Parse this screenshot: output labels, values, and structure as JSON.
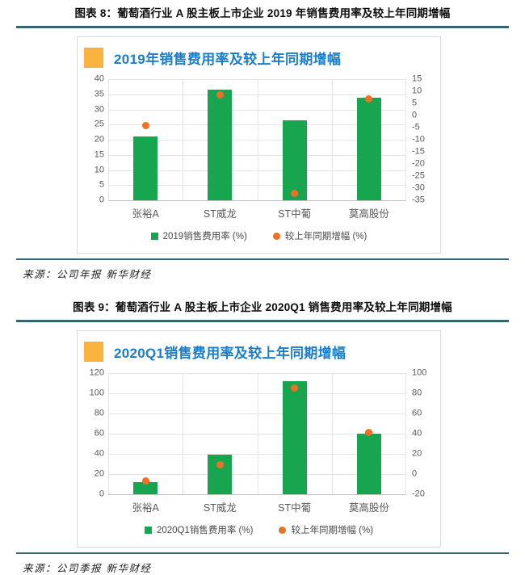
{
  "figures": [
    {
      "caption": "图表 8：葡萄酒行业 A 股主板上市企业 2019 年销售费用率及较上年同期增幅",
      "source": "来源：公司年报  新华财经"
    },
    {
      "caption": "图表 9：葡萄酒行业 A 股主板上市企业 2020Q1 销售费用率及较上年同期增幅",
      "source": "来源：公司季报  新华财经"
    }
  ],
  "colors": {
    "bar_green": "#17a550",
    "dot_orange": "#ea7125",
    "chart_title_blue": "#1a7dc9",
    "accent_orange": "#f9b23e",
    "rule_teal": "#35656e",
    "axis_text_gray": "#595959"
  },
  "icons": {
    "accent_square": "orange-square-bullet",
    "legend_bar_swatch": "green-square",
    "legend_dot_swatch": "orange-circle"
  },
  "chart_data": [
    {
      "type": "bar",
      "title": "2019年销售费用率及较上年同期增幅",
      "categories": [
        "张裕A",
        "ST威龙",
        "ST中葡",
        "莫高股份"
      ],
      "series": [
        {
          "name": "2019销售费用率 (%)",
          "type": "bar",
          "axis": "left",
          "color": "#17a550",
          "values": [
            21,
            36.5,
            26.5,
            34
          ]
        },
        {
          "name": "较上年同期增幅 (%)",
          "type": "scatter",
          "axis": "right",
          "color": "#ea7125",
          "values": [
            -4,
            8.5,
            -32,
            7
          ]
        }
      ],
      "left_axis": {
        "min": 0,
        "max": 40,
        "step": 5
      },
      "right_axis": {
        "min": -35,
        "max": 15,
        "step": 5
      },
      "grid": true,
      "legend_position": "bottom"
    },
    {
      "type": "bar",
      "title": "2020Q1销售费用率及较上年同期增幅",
      "categories": [
        "张裕A",
        "ST威龙",
        "ST中葡",
        "莫高股份"
      ],
      "series": [
        {
          "name": "2020Q1销售费用率 (%)",
          "type": "bar",
          "axis": "left",
          "color": "#17a550",
          "values": [
            12,
            39,
            112,
            60
          ]
        },
        {
          "name": "较上年同期增幅 (%)",
          "type": "scatter",
          "axis": "right",
          "color": "#ea7125",
          "values": [
            -7,
            9,
            85,
            41
          ]
        }
      ],
      "left_axis": {
        "min": 0,
        "max": 120,
        "step": 20
      },
      "right_axis": {
        "min": -20,
        "max": 100,
        "step": 20
      },
      "grid": true,
      "legend_position": "bottom"
    }
  ]
}
